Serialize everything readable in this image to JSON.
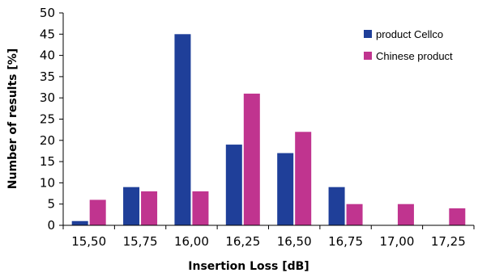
{
  "chart_data": {
    "type": "bar",
    "categories": [
      "15,50",
      "15,75",
      "16,00",
      "16,25",
      "16,50",
      "16,75",
      "17,00",
      "17,25"
    ],
    "series": [
      {
        "name": "product Cellco",
        "color": "#1f3f99",
        "values": [
          1,
          9,
          45,
          19,
          17,
          9,
          0,
          0
        ]
      },
      {
        "name": "Chinese product",
        "color": "#c0348f",
        "values": [
          6,
          8,
          8,
          31,
          22,
          5,
          5,
          4
        ]
      }
    ],
    "xlabel": "Insertion Loss [dB]",
    "ylabel": "Number of results [%]",
    "ylim": [
      0,
      50
    ],
    "yticks": [
      "0",
      "5",
      "10",
      "15",
      "20",
      "25",
      "30",
      "35",
      "40",
      "45",
      "50"
    ],
    "grid": false,
    "legend_position": "top-right"
  }
}
